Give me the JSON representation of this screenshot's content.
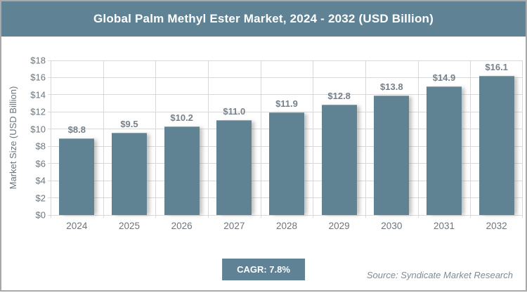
{
  "page": {
    "kind": "market-research-chart-card"
  },
  "footer": {
    "cagr_label": "CAGR: 7.8%",
    "source": "Source: Syndicate Market Research"
  },
  "colors": {
    "accent_teal": "#5f8394",
    "bar_fill": "#608394",
    "gridline": "#d9d9d9",
    "axis_text": "#6c767d",
    "value_label_text": "#75808a",
    "border_gray": "#a9a9a9",
    "title_text": "#ffffff"
  },
  "chart_data": {
    "type": "bar",
    "title": "Global Palm Methyl Ester Market, 2024 - 2032 (USD Billion)",
    "categories": [
      "2024",
      "2025",
      "2026",
      "2027",
      "2028",
      "2029",
      "2030",
      "2031",
      "2032"
    ],
    "values": [
      8.8,
      9.5,
      10.2,
      11.0,
      11.9,
      12.8,
      13.8,
      14.9,
      16.1
    ],
    "value_labels": [
      "$8.8",
      "$9.5",
      "$10.2",
      "$11.0",
      "$11.9",
      "$12.8",
      "$13.8",
      "$14.9",
      "$16.1"
    ],
    "xlabel": "",
    "ylabel": "Market Size (USD Billion)",
    "ylim": [
      0,
      18
    ],
    "ytick_step": 2,
    "ytick_labels": [
      "$0",
      "$2",
      "$4",
      "$6",
      "$8",
      "$10",
      "$12",
      "$14",
      "$16",
      "$18"
    ],
    "grid": true,
    "legend": false
  }
}
